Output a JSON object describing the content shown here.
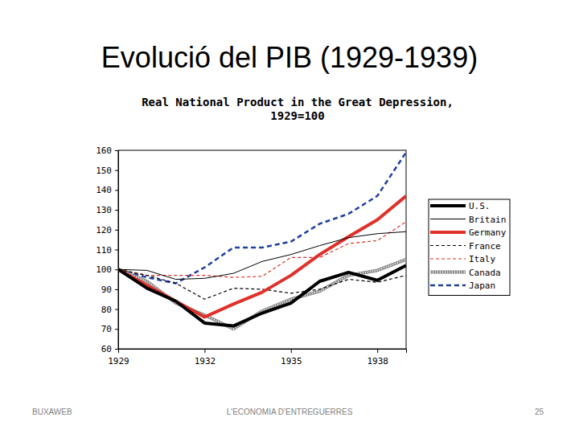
{
  "slide": {
    "title": "Evolució del PIB (1929-1939)",
    "footer": [
      "BUXAWEB",
      "L'ECONOMIA D'ENTREGUERRES",
      "25"
    ]
  },
  "chart_data": {
    "type": "line",
    "title": "Real National Product in the Great Depression, 1929=100",
    "x": [
      1929,
      1930,
      1931,
      1932,
      1933,
      1934,
      1935,
      1936,
      1937,
      1938,
      1939
    ],
    "xlim": [
      1929,
      1939
    ],
    "xticks": [
      1929,
      1932,
      1935,
      1938
    ],
    "ylim": [
      60,
      160
    ],
    "yticks": [
      60,
      70,
      80,
      90,
      100,
      110,
      120,
      130,
      140,
      150,
      160
    ],
    "grid": false,
    "legend": "right",
    "series": [
      {
        "name": "U.S.",
        "color": "#000000",
        "line_style": "thick",
        "values": [
          100,
          90.5,
          84,
          73,
          71.5,
          78,
          83,
          94,
          98.5,
          94.5,
          102
        ]
      },
      {
        "name": "Britain",
        "color": "#000000",
        "line_style": "solid",
        "values": [
          100,
          99.5,
          95,
          95.5,
          98,
          104,
          107.5,
          112,
          116,
          118,
          119
        ]
      },
      {
        "name": "Germany",
        "color": "#e0302a",
        "line_style": "thick",
        "values": [
          100,
          92,
          84,
          76,
          82.5,
          88.5,
          97,
          107.5,
          116.5,
          125,
          137
        ]
      },
      {
        "name": "France",
        "color": "#000000",
        "line_style": "dashed",
        "values": [
          100,
          97,
          93,
          85,
          90.5,
          90,
          88,
          90,
          95,
          93.5,
          97
        ]
      },
      {
        "name": "Italy",
        "color": "#e0302a",
        "line_style": "dashed",
        "values": [
          100,
          97,
          97,
          97,
          96,
          96.5,
          106,
          106,
          113,
          114.5,
          124
        ]
      },
      {
        "name": "Canada",
        "color": "#8a8a8a",
        "line_style": "hatched",
        "values": [
          100,
          94,
          83,
          77,
          70,
          79,
          85,
          89,
          97,
          99.5,
          105
        ]
      },
      {
        "name": "Japan",
        "color": "#1f3f9f",
        "line_style": "dashed",
        "values": [
          100,
          96,
          93,
          101,
          111,
          111,
          114,
          123,
          128,
          137,
          159
        ]
      }
    ]
  }
}
